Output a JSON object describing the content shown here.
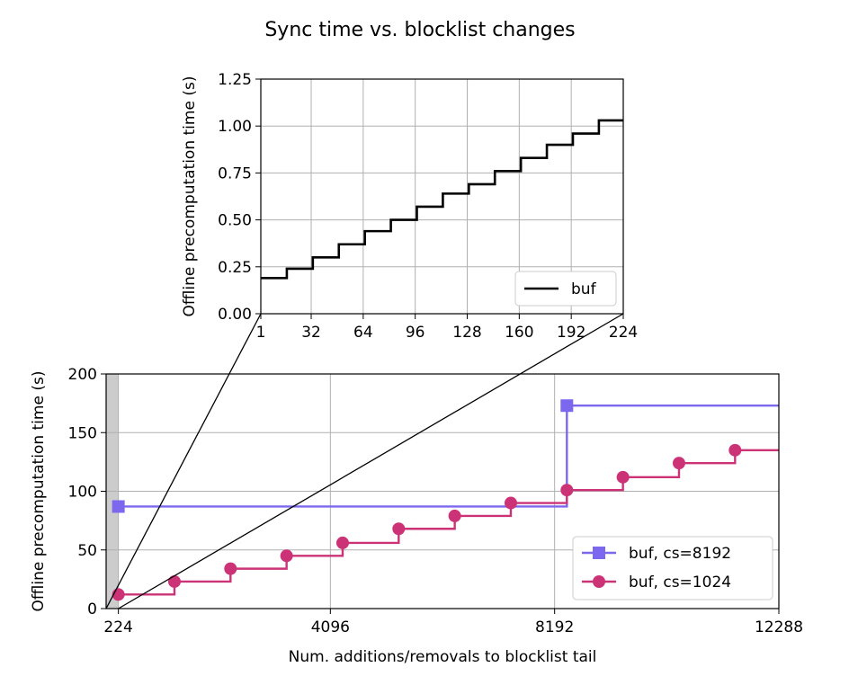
{
  "title": "Sync time vs. blocklist changes",
  "chart_data": [
    {
      "type": "line",
      "name_hint": "inset",
      "ylabel": "Offline precomputation time (s)",
      "xlabel": "",
      "xlim": [
        1,
        224
      ],
      "ylim": [
        0,
        1.25
      ],
      "xticks": [
        1,
        32,
        64,
        96,
        128,
        160,
        192,
        224
      ],
      "xtick_labels": [
        "1",
        "32",
        "64",
        "96",
        "128",
        "160",
        "192",
        "224"
      ],
      "yticks": [
        0,
        0.25,
        0.5,
        0.75,
        1.0,
        1.25
      ],
      "ytick_labels": [
        "0.00",
        "0.25",
        "0.50",
        "0.75",
        "1.00",
        "1.25"
      ],
      "grid": true,
      "legend_position": "lower-right",
      "series": [
        {
          "name": "buf",
          "color": "#000000",
          "step": true,
          "x": [
            1,
            17,
            33,
            49,
            65,
            81,
            97,
            113,
            129,
            145,
            161,
            177,
            193,
            209
          ],
          "y": [
            0.19,
            0.24,
            0.3,
            0.37,
            0.44,
            0.5,
            0.57,
            0.64,
            0.69,
            0.76,
            0.83,
            0.9,
            0.96,
            1.03
          ]
        }
      ]
    },
    {
      "type": "line",
      "name_hint": "main",
      "xlabel": "Num. additions/removals to blocklist tail",
      "ylabel": "Offline precomputation time (s)",
      "xlim": [
        0,
        12288
      ],
      "ylim": [
        0,
        200
      ],
      "xticks": [
        224,
        4096,
        8192,
        12288
      ],
      "xtick_labels": [
        "224",
        "4096",
        "8192",
        "12288"
      ],
      "yticks": [
        0,
        50,
        100,
        150,
        200
      ],
      "ytick_labels": [
        "0",
        "50",
        "100",
        "150",
        "200"
      ],
      "grid": true,
      "shaded_region": [
        0,
        224
      ],
      "legend_position": "lower-right",
      "series": [
        {
          "name": "buf, cs=8192",
          "color": "#7b68ee",
          "marker": "square",
          "step": true,
          "x": [
            224,
            8416
          ],
          "y": [
            87,
            173
          ]
        },
        {
          "name": "buf, cs=1024",
          "color": "#cc3377",
          "marker": "circle",
          "step": true,
          "x": [
            224,
            1248,
            2272,
            3296,
            4320,
            5344,
            6368,
            7392,
            8416,
            9440,
            10464,
            11488
          ],
          "y": [
            12,
            23,
            34,
            45,
            56,
            68,
            79,
            90,
            101,
            112,
            124,
            135
          ]
        }
      ]
    }
  ]
}
